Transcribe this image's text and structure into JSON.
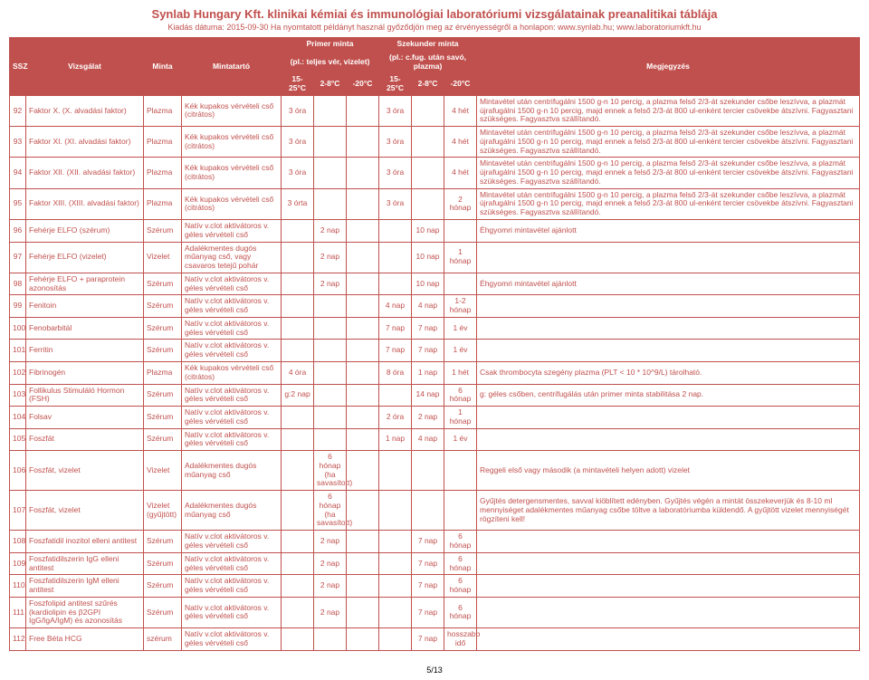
{
  "header": {
    "title": "Synlab Hungary Kft. klinikai kémiai és immunológiai laboratóriumi vizsgálatainak preanalitikai táblája",
    "sub": "Kiadás dátuma: 2015-09-30  Ha nyomtatott példányt használ győződjön meg az érvényességről a honlapon: www.synlab.hu; www.laboratoriumkft.hu"
  },
  "thead": {
    "primer": "Primer minta",
    "szekunder": "Szekunder minta",
    "ssz": "SSZ",
    "vizsgalat": "Vizsgálat",
    "minta": "Minta",
    "mintatarto": "Mintatartó",
    "primer_sub": "(pl.: teljes vér, vizelet)",
    "szekunder_sub": "(pl.: c.fug. után savó, plazma)",
    "megjegyzes": "Megjegyzés",
    "t1": "15-25°C",
    "t2": "2-8°C",
    "t3": "-20°C",
    "t4": "15-25°C",
    "t5": "2-8°C",
    "t6": "-20°C"
  },
  "note_long": "Mintavétel után centrifugálni 1500 g-n 10 percig, a plazma felső 2/3-át szekunder csőbe leszívva, a plazmát újrafugálni 1500 g-n 10 percig, majd ennek a felső 2/3-át 800 ul-enként tercier csövekbe átszívni. Fagyasztani szükséges. Fagyasztva szállítandó.",
  "rows": [
    {
      "n": "92",
      "v": "Faktor X. (X. alvadási faktor)",
      "m": "Plazma",
      "t": "Kék kupakos vérvételi cső (citrátos)",
      "c": [
        "3 óra",
        "",
        "",
        "3 óra",
        "",
        "4 hét"
      ],
      "note": "@long"
    },
    {
      "n": "93",
      "v": "Faktor XI. (XI. alvadási faktor)",
      "m": "Plazma",
      "t": "Kék kupakos vérvételi cső (citrátos)",
      "c": [
        "3 óra",
        "",
        "",
        "3 óra",
        "",
        "4 hét"
      ],
      "note": "@long"
    },
    {
      "n": "94",
      "v": "Faktor XII. (XII. alvadási faktor)",
      "m": "Plazma",
      "t": "Kék kupakos vérvételi cső (citrátos)",
      "c": [
        "3 óra",
        "",
        "",
        "3 óra",
        "",
        "4 hét"
      ],
      "note": "@long"
    },
    {
      "n": "95",
      "v": "Faktor XIII. (XIII. alvadási faktor)",
      "m": "Plazma",
      "t": "Kék kupakos vérvételi cső (citrátos)",
      "c": [
        "3 órta",
        "",
        "",
        "3 óra",
        "",
        "2 hónap"
      ],
      "note": "@long"
    },
    {
      "n": "96",
      "v": "Fehérje ELFO (szérum)",
      "m": "Szérum",
      "t": "Natív v.clot aktivátoros v. géles vérvételi cső",
      "c": [
        "",
        "2 nap",
        "",
        "",
        "10 nap",
        ""
      ],
      "note": "Éhgyomri mintavétel ajánlott"
    },
    {
      "n": "97",
      "v": "Fehérje ELFO (vizelet)",
      "m": "Vizelet",
      "t": "Adalékmentes dugós műanyag cső, vagy csavaros tetejű pohár",
      "c": [
        "",
        "2 nap",
        "",
        "",
        "10 nap",
        "1 hónap"
      ],
      "note": ""
    },
    {
      "n": "98",
      "v": "Fehérje ELFO + paraprotein azonosítás",
      "m": "Szérum",
      "t": "Natív v.clot aktivátoros v. géles vérvételi cső",
      "c": [
        "",
        "2 nap",
        "",
        "",
        "10 nap",
        ""
      ],
      "note": "Éhgyomri mintavétel ajánlott"
    },
    {
      "n": "99",
      "v": "Fenitoin",
      "m": "Szérum",
      "t": "Natív v.clot aktivátoros v. géles vérvételi cső",
      "c": [
        "",
        "",
        "",
        "4 nap",
        "4 nap",
        "1-2 hónap"
      ],
      "note": ""
    },
    {
      "n": "100",
      "v": "Fenobarbitál",
      "m": "Szérum",
      "t": "Natív v.clot aktivátoros v. géles vérvételi cső",
      "c": [
        "",
        "",
        "",
        "7 nap",
        "7 nap",
        "1 év"
      ],
      "note": ""
    },
    {
      "n": "101",
      "v": "Ferritin",
      "m": "Szérum",
      "t": "Natív v.clot aktivátoros v. géles vérvételi cső",
      "c": [
        "",
        "",
        "",
        "7 nap",
        "7 nap",
        "1 év"
      ],
      "note": ""
    },
    {
      "n": "102",
      "v": "Fibrinogén",
      "m": "Plazma",
      "t": "Kék kupakos vérvételi cső (citrátos)",
      "c": [
        "4 óra",
        "",
        "",
        "8 óra",
        "1 nap",
        "1 hét"
      ],
      "note": "Csak thrombocyta szegény plazma (PLT < 10 * 10^9/L) tárolható."
    },
    {
      "n": "103",
      "v": "Follikulus Stimuláló Hormon (FSH)",
      "m": "Szérum",
      "t": "Natív v.clot aktivátoros v. géles vérvételi cső",
      "c": [
        "g:2 nap",
        "",
        "",
        "",
        "14 nap",
        "6 hónap"
      ],
      "note": "g: géles csőben, centrifugálás után primer minta stabilitása 2 nap."
    },
    {
      "n": "104",
      "v": "Folsav",
      "m": "Szérum",
      "t": "Natív v.clot aktivátoros v. géles vérvételi cső",
      "c": [
        "",
        "",
        "",
        "2 óra",
        "2 nap",
        "1 hónap"
      ],
      "note": ""
    },
    {
      "n": "105",
      "v": "Foszfát",
      "m": "Szérum",
      "t": "Natív v.clot aktivátoros v. géles vérvételi cső",
      "c": [
        "",
        "",
        "",
        "1 nap",
        "4 nap",
        "1 év"
      ],
      "note": ""
    },
    {
      "n": "106",
      "v": "Foszfát, vizelet",
      "m": "Vizelet",
      "t": "Adalékmentes dugós műanyag cső",
      "c": [
        "",
        "6 hónap (ha savasított)",
        "",
        "",
        "",
        ""
      ],
      "note": "Reggeli első vagy második (a mintavételi helyen adott) vizelet"
    },
    {
      "n": "107",
      "v": "Foszfát, vizelet",
      "m": "Vizelet (gyűjtött)",
      "t": "Adalékmentes dugós műanyag cső",
      "c": [
        "",
        "6 hónap (ha savasított)",
        "",
        "",
        "",
        ""
      ],
      "note": "Gyűjtés detergensmentes, savval kiöblített edényben. Gyűjtés végén a mintát összekeverjük és 8-10 ml mennyiséget adalékmentes műanyag csőbe töltve a laboratóriumba küldendő. A gyűjtött vizelet mennyiségét rögzíteni kell!"
    },
    {
      "n": "108",
      "v": "Foszfatidil inozitol elleni antitest",
      "m": "Szérum",
      "t": "Natív v.clot aktivátoros v. géles vérvételi cső",
      "c": [
        "",
        "2 nap",
        "",
        "",
        "7 nap",
        "6 hónap"
      ],
      "note": ""
    },
    {
      "n": "109",
      "v": "Foszfatidilszerin IgG elleni antitest",
      "m": "Szérum",
      "t": "Natív v.clot aktivátoros v. géles vérvételi cső",
      "c": [
        "",
        "2 nap",
        "",
        "",
        "7 nap",
        "6 hónap"
      ],
      "note": ""
    },
    {
      "n": "110",
      "v": "Foszfatidilszerin IgM elleni antitest",
      "m": "Szérum",
      "t": "Natív v.clot aktivátoros v. géles vérvételi cső",
      "c": [
        "",
        "2 nap",
        "",
        "",
        "7 nap",
        "6 hónap"
      ],
      "note": ""
    },
    {
      "n": "111",
      "v": "Foszfolipid antitest szűrés (kardiolipin és β2GPI IgG/IgA/IgM) és azonosítás",
      "m": "Szérum",
      "t": "Natív v.clot aktivátoros v. géles vérvételi cső",
      "c": [
        "",
        "2 nap",
        "",
        "",
        "7 nap",
        "6 hónap"
      ],
      "note": ""
    },
    {
      "n": "112",
      "v": "Free Béta HCG",
      "m": "szérum",
      "t": "Natív v.clot aktivátoros v. géles vérvételi cső",
      "c": [
        "",
        "",
        "",
        "",
        "7 nap",
        "hosszabb idő"
      ],
      "note": ""
    }
  ],
  "footer": "5/13"
}
